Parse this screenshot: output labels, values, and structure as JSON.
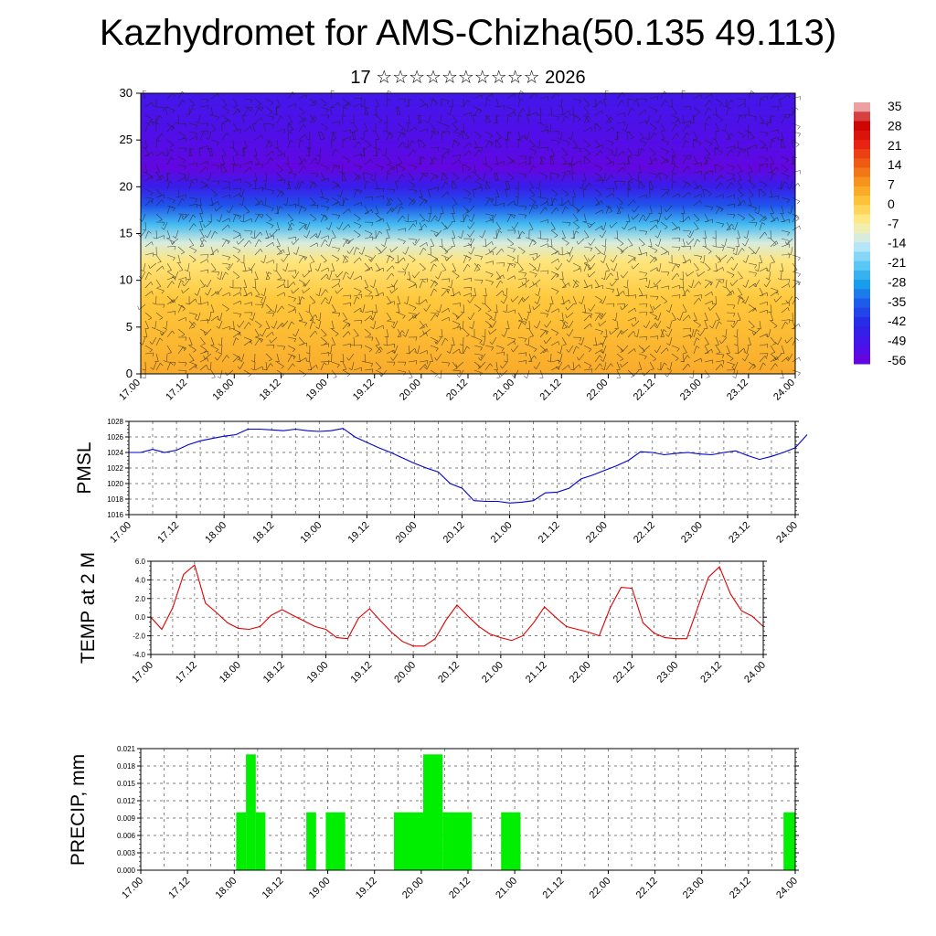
{
  "page": {
    "title": "Kazhydromet for AMS-Chizha(50.135 49.113)",
    "subtitle": "17 ☆☆☆☆☆☆☆☆☆☆ 2026"
  },
  "colors": {
    "pmsl_line": "#0000cc",
    "temp_line": "#dd0000",
    "precip_bar": "#00ee00",
    "grid": "#555555"
  },
  "chart_data": [
    {
      "id": "cross_section",
      "type": "heatmap",
      "description_overlay": "wind barbs",
      "x_ticks": [
        "17.00",
        "17.12",
        "18.00",
        "18.12",
        "19.00",
        "19.12",
        "20.00",
        "20.12",
        "21.00",
        "21.12",
        "22.00",
        "22.12",
        "23.00",
        "23.12",
        "24.00"
      ],
      "y_ticks": [
        "0",
        "5",
        "10",
        "15",
        "20",
        "25",
        "30"
      ],
      "ylim": [
        0,
        30
      ],
      "colorbar_labels": [
        "35",
        "28",
        "21",
        "14",
        "7",
        "0",
        "-7",
        "-14",
        "-21",
        "-28",
        "-35",
        "-42",
        "-49",
        "-56"
      ],
      "colorbar_range": [
        -56,
        35
      ],
      "bands": [
        {
          "level": 0,
          "value": 4
        },
        {
          "level": 4,
          "value": 2
        },
        {
          "level": 8,
          "value": 0
        },
        {
          "level": 12,
          "value": -5
        },
        {
          "level": 14,
          "value": -12
        },
        {
          "level": 16,
          "value": -24
        },
        {
          "level": 18,
          "value": -36
        },
        {
          "level": 20,
          "value": -46
        },
        {
          "level": 22,
          "value": -54
        },
        {
          "level": 24,
          "value": -52
        },
        {
          "level": 27,
          "value": -50
        },
        {
          "level": 31,
          "value": -48
        }
      ]
    },
    {
      "id": "pmsl",
      "type": "line",
      "ylabel": "PMSL",
      "y_ticks": [
        "1016",
        "1018",
        "1020",
        "1022",
        "1024",
        "1026",
        "1028"
      ],
      "ylim": [
        1016,
        1028
      ],
      "x_ticks": [
        "17.00",
        "17.12",
        "18.00",
        "18.12",
        "19.00",
        "19.12",
        "20.00",
        "20.12",
        "21.00",
        "21.12",
        "22.00",
        "22.12",
        "23.00",
        "23.12",
        "24.00"
      ],
      "step_hours": 3,
      "values": [
        1024,
        1024,
        1024.4,
        1024,
        1024.3,
        1025,
        1025.5,
        1025.8,
        1026.1,
        1026.3,
        1027,
        1027,
        1026.9,
        1026.8,
        1027,
        1026.8,
        1026.7,
        1026.8,
        1027.1,
        1026,
        1025.3,
        1024.6,
        1024,
        1023.3,
        1022.6,
        1022,
        1021.5,
        1020,
        1019.4,
        1017.8,
        1017.7,
        1017.7,
        1017.5,
        1017.6,
        1017.8,
        1018.8,
        1018.9,
        1019.4,
        1020.6,
        1021.1,
        1021.7,
        1022.3,
        1023,
        1024.1,
        1024,
        1023.7,
        1023.9,
        1024,
        1023.8,
        1023.7,
        1024,
        1024.2,
        1023.6,
        1023.1,
        1023.5,
        1024,
        1024.6,
        1026.3
      ]
    },
    {
      "id": "temp",
      "type": "line",
      "ylabel": "TEMP at 2 M",
      "y_ticks": [
        "-4.0",
        "-2.0",
        "0.0",
        "2.0",
        "4.0",
        "6.0"
      ],
      "ylim": [
        -4,
        6
      ],
      "x_ticks": [
        "17.00",
        "17.12",
        "18.00",
        "18.12",
        "19.00",
        "19.12",
        "20.00",
        "20.12",
        "21.00",
        "21.12",
        "22.00",
        "22.12",
        "23.00",
        "23.12",
        "24.00"
      ],
      "step_hours": 3,
      "values": [
        0,
        -1.3,
        1,
        4.6,
        5.6,
        1.5,
        0.5,
        -0.6,
        -1.2,
        -1.3,
        -1,
        0.2,
        0.8,
        0.2,
        -0.4,
        -1,
        -1.3,
        -2.2,
        -2.3,
        -0.1,
        0.9,
        -0.4,
        -1.6,
        -2.6,
        -3.1,
        -3.1,
        -2.3,
        -0.3,
        1.3,
        0.1,
        -1,
        -1.8,
        -2.2,
        -2.5,
        -2,
        -0.6,
        1.1,
        0,
        -1,
        -1.3,
        -1.6,
        -2,
        1,
        3.2,
        3.1,
        -0.6,
        -1.7,
        -2.2,
        -2.3,
        -2.3,
        1,
        4.3,
        5.4,
        2.5,
        0.7,
        0.1,
        -1
      ]
    },
    {
      "id": "precip",
      "type": "bar",
      "ylabel": "PRECIP, mm",
      "y_ticks": [
        "0.000",
        "0.003",
        "0.006",
        "0.009",
        "0.012",
        "0.015",
        "0.018",
        "0.021"
      ],
      "ylim": [
        0,
        0.021
      ],
      "x_ticks": [
        "17.00",
        "17.12",
        "18.00",
        "18.12",
        "19.00",
        "19.12",
        "20.00",
        "20.12",
        "21.00",
        "21.12",
        "22.00",
        "22.12",
        "23.00",
        "23.12",
        "24.00"
      ],
      "bars": [
        {
          "t0": 24.5,
          "t1": 27,
          "value": 0.01
        },
        {
          "t0": 27,
          "t1": 29.5,
          "value": 0.02
        },
        {
          "t0": 29.5,
          "t1": 32,
          "value": 0.01
        },
        {
          "t0": 42.5,
          "t1": 45,
          "value": 0.01
        },
        {
          "t0": 47.5,
          "t1": 52.5,
          "value": 0.01
        },
        {
          "t0": 65,
          "t1": 72.5,
          "value": 0.01
        },
        {
          "t0": 72.5,
          "t1": 77.5,
          "value": 0.02
        },
        {
          "t0": 77.5,
          "t1": 85,
          "value": 0.01
        },
        {
          "t0": 92.5,
          "t1": 97.5,
          "value": 0.01
        },
        {
          "t0": 165,
          "t1": 168,
          "value": 0.01
        }
      ]
    }
  ]
}
